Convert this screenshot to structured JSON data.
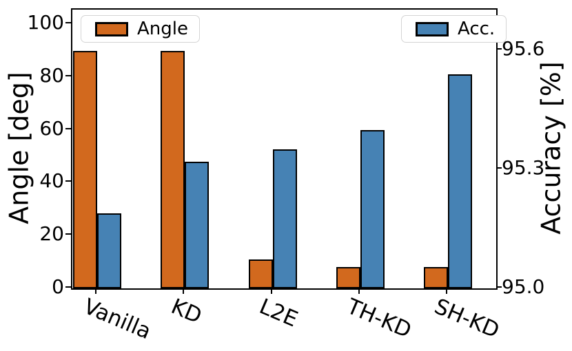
{
  "chart_data": {
    "type": "bar",
    "categories": [
      "Vanilla",
      "KD",
      "L2E",
      "TH-KD",
      "SH-KD"
    ],
    "series": [
      {
        "name": "Angle",
        "axis": "left",
        "color": "#d2691e",
        "edge_color": "#000000",
        "values": [
          90,
          90,
          11,
          8,
          8
        ]
      },
      {
        "name": "Acc.",
        "axis": "right",
        "color": "#4682b4",
        "edge_color": "#000000",
        "values": [
          95.19,
          95.32,
          95.35,
          95.4,
          95.54
        ]
      }
    ],
    "left_axis": {
      "label": "Angle [deg]",
      "tick_values": [
        0,
        20,
        40,
        60,
        80,
        100
      ],
      "tick_labels": [
        "0",
        "20",
        "40",
        "60",
        "80",
        "100"
      ],
      "lim": [
        0,
        105.5
      ]
    },
    "right_axis": {
      "label": "Accuracy [%]",
      "tick_values": [
        95.0,
        95.3,
        95.6
      ],
      "tick_labels": [
        "95.0",
        "95.3",
        "95.6"
      ],
      "lim": [
        95.0,
        95.703
      ]
    },
    "legend": {
      "entries": [
        "Angle",
        "Acc."
      ],
      "position": "top"
    },
    "grid": false,
    "x_tick_rotation_deg": 23,
    "background": "#ffffff"
  }
}
